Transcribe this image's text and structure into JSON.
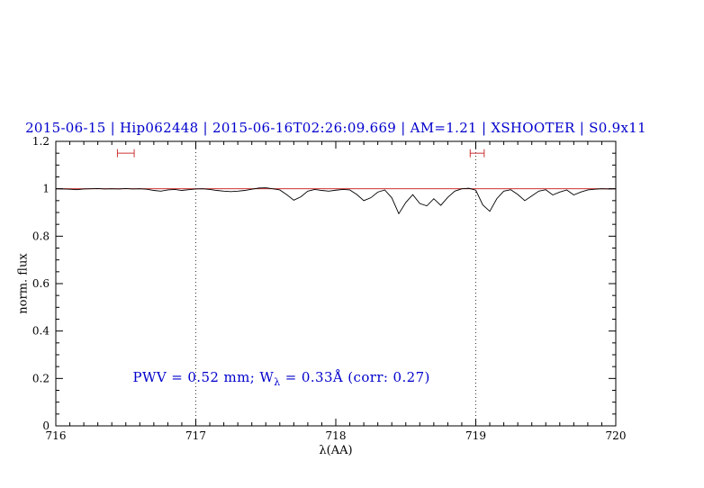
{
  "chart_data": {
    "type": "line",
    "title": "2015-06-15 | Hip062448 | 2015-06-16T02:26:09.669 | AM=1.21 | XSHOOTER | S0.9x11",
    "title_color": "#0000cc",
    "xlabel": "λ(AA)",
    "ylabel": "norm. flux",
    "xlim": [
      716,
      720
    ],
    "ylim": [
      0,
      1.2
    ],
    "xticks": [
      716,
      717,
      718,
      719,
      720
    ],
    "xtick_labels": [
      "716",
      "717",
      "718",
      "719",
      "720"
    ],
    "yticks": [
      0,
      0.2,
      0.4,
      0.6,
      0.8,
      1,
      1.2
    ],
    "ytick_labels": [
      "0",
      "0.2",
      "0.4",
      "0.6",
      "0.8",
      "1",
      "1.2"
    ],
    "x_minor_step": 0.1,
    "y_minor_step": 0.05,
    "dotted_guides": [
      717,
      719
    ],
    "guide_color": "#333333",
    "continuum": {
      "y": 1.0,
      "color": "#cc3333"
    },
    "marker_color": "#cc3333",
    "markers": [
      {
        "x1": 716.44,
        "x2": 716.56,
        "y": 1.15
      },
      {
        "x1": 718.96,
        "x2": 719.06,
        "y": 1.15
      }
    ],
    "annotation": {
      "prefix": "PWV = 0.52 mm; W",
      "sub": "λ",
      "suffix": " = 0.33Å (corr: 0.27)",
      "x": 716.55,
      "y": 0.2,
      "color": "#0000cc"
    },
    "series": [
      {
        "name": "spectrum",
        "color": "#000000",
        "points": [
          [
            716.0,
            1.0
          ],
          [
            716.05,
            0.999
          ],
          [
            716.1,
            0.998
          ],
          [
            716.15,
            0.996
          ],
          [
            716.2,
            0.999
          ],
          [
            716.25,
            1.0
          ],
          [
            716.3,
            1.001
          ],
          [
            716.35,
            0.999
          ],
          [
            716.4,
            1.0
          ],
          [
            716.45,
            0.999
          ],
          [
            716.5,
            1.001
          ],
          [
            716.55,
            0.999
          ],
          [
            716.6,
            1.0
          ],
          [
            716.65,
            0.998
          ],
          [
            716.7,
            0.993
          ],
          [
            716.75,
            0.99
          ],
          [
            716.8,
            0.995
          ],
          [
            716.85,
            0.997
          ],
          [
            716.9,
            0.993
          ],
          [
            716.95,
            0.996
          ],
          [
            717.0,
            0.999
          ],
          [
            717.05,
            1.0
          ],
          [
            717.1,
            0.997
          ],
          [
            717.15,
            0.993
          ],
          [
            717.2,
            0.99
          ],
          [
            717.25,
            0.988
          ],
          [
            717.3,
            0.99
          ],
          [
            717.35,
            0.993
          ],
          [
            717.4,
            0.998
          ],
          [
            717.45,
            1.003
          ],
          [
            717.5,
            1.004
          ],
          [
            717.55,
            1.0
          ],
          [
            717.6,
            0.995
          ],
          [
            717.65,
            0.975
          ],
          [
            717.7,
            0.952
          ],
          [
            717.75,
            0.966
          ],
          [
            717.8,
            0.99
          ],
          [
            717.85,
            0.997
          ],
          [
            717.9,
            0.993
          ],
          [
            717.95,
            0.99
          ],
          [
            718.0,
            0.994
          ],
          [
            718.05,
            0.997
          ],
          [
            718.1,
            0.995
          ],
          [
            718.15,
            0.976
          ],
          [
            718.2,
            0.95
          ],
          [
            718.25,
            0.962
          ],
          [
            718.3,
            0.986
          ],
          [
            718.35,
            0.995
          ],
          [
            718.4,
            0.962
          ],
          [
            718.45,
            0.895
          ],
          [
            718.5,
            0.942
          ],
          [
            718.55,
            0.975
          ],
          [
            718.6,
            0.938
          ],
          [
            718.65,
            0.928
          ],
          [
            718.7,
            0.958
          ],
          [
            718.75,
            0.93
          ],
          [
            718.8,
            0.964
          ],
          [
            718.85,
            0.99
          ],
          [
            718.9,
            1.0
          ],
          [
            718.95,
            1.002
          ],
          [
            719.0,
            0.994
          ],
          [
            719.05,
            0.932
          ],
          [
            719.1,
            0.905
          ],
          [
            719.15,
            0.958
          ],
          [
            719.2,
            0.99
          ],
          [
            719.25,
            0.996
          ],
          [
            719.3,
            0.976
          ],
          [
            719.35,
            0.95
          ],
          [
            719.4,
            0.97
          ],
          [
            719.45,
            0.99
          ],
          [
            719.5,
            0.996
          ],
          [
            719.55,
            0.974
          ],
          [
            719.6,
            0.986
          ],
          [
            719.65,
            0.995
          ],
          [
            719.7,
            0.974
          ],
          [
            719.75,
            0.986
          ],
          [
            719.8,
            0.995
          ],
          [
            719.85,
            0.998
          ],
          [
            719.9,
            1.0
          ],
          [
            719.95,
            0.999
          ],
          [
            720.0,
            1.0
          ]
        ]
      }
    ]
  }
}
